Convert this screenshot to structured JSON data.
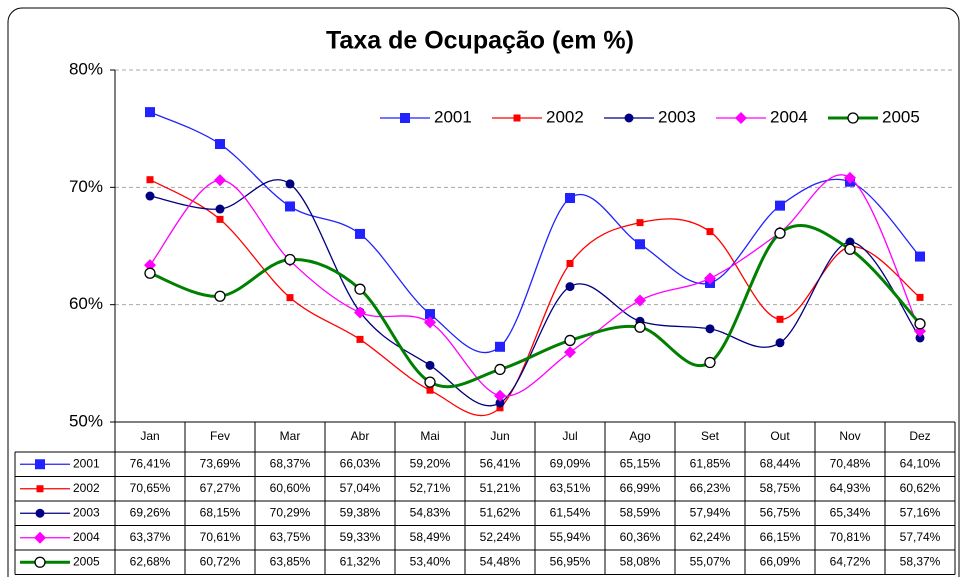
{
  "chart_data": {
    "type": "line",
    "title": "Taxa de Ocupação (em %)",
    "categories": [
      "Jan",
      "Fev",
      "Mar",
      "Abr",
      "Mai",
      "Jun",
      "Jul",
      "Ago",
      "Set",
      "Out",
      "Nov",
      "Dez"
    ],
    "ylim": [
      50,
      80
    ],
    "yticks": [
      {
        "value": 50,
        "label": "50%"
      },
      {
        "value": 60,
        "label": "60%"
      },
      {
        "value": 70,
        "label": "70%"
      },
      {
        "value": 80,
        "label": "80%"
      }
    ],
    "grid": true,
    "legend": "top",
    "series": [
      {
        "name": "2001",
        "color": "#2222ff",
        "marker": "square",
        "values": [
          76.41,
          73.69,
          68.37,
          66.03,
          59.2,
          56.41,
          69.09,
          65.15,
          61.85,
          68.44,
          70.48,
          64.1
        ],
        "value_labels": [
          "76,41%",
          "73,69%",
          "68,37%",
          "66,03%",
          "59,20%",
          "56,41%",
          "69,09%",
          "65,15%",
          "61,85%",
          "68,44%",
          "70,48%",
          "64,10%"
        ]
      },
      {
        "name": "2002",
        "color": "#ff0000",
        "marker": "small-square",
        "values": [
          70.65,
          67.27,
          60.6,
          57.04,
          52.71,
          51.21,
          63.51,
          66.99,
          66.23,
          58.75,
          64.93,
          60.62
        ],
        "value_labels": [
          "70,65%",
          "67,27%",
          "60,60%",
          "57,04%",
          "52,71%",
          "51,21%",
          "63,51%",
          "66,99%",
          "66,23%",
          "58,75%",
          "64,93%",
          "60,62%"
        ]
      },
      {
        "name": "2003",
        "color": "#000080",
        "marker": "circle",
        "values": [
          69.26,
          68.15,
          70.29,
          59.38,
          54.83,
          51.62,
          61.54,
          58.59,
          57.94,
          56.75,
          65.34,
          57.16
        ],
        "value_labels": [
          "69,26%",
          "68,15%",
          "70,29%",
          "59,38%",
          "54,83%",
          "51,62%",
          "61,54%",
          "58,59%",
          "57,94%",
          "56,75%",
          "65,34%",
          "57,16%"
        ]
      },
      {
        "name": "2004",
        "color": "#ff00ff",
        "marker": "diamond",
        "values": [
          63.37,
          70.61,
          63.75,
          59.33,
          58.49,
          52.24,
          55.94,
          60.36,
          62.24,
          66.15,
          70.81,
          57.74
        ],
        "value_labels": [
          "63,37%",
          "70,61%",
          "63,75%",
          "59,33%",
          "58,49%",
          "52,24%",
          "55,94%",
          "60,36%",
          "62,24%",
          "66,15%",
          "70,81%",
          "57,74%"
        ]
      },
      {
        "name": "2005",
        "color": "#008000",
        "marker": "open-circle",
        "values": [
          62.68,
          60.72,
          63.85,
          61.32,
          53.4,
          54.48,
          56.95,
          58.08,
          55.07,
          66.09,
          64.72,
          58.37
        ],
        "value_labels": [
          "62,68%",
          "60,72%",
          "63,85%",
          "61,32%",
          "53,40%",
          "54,48%",
          "56,95%",
          "58,08%",
          "55,07%",
          "66,09%",
          "64,72%",
          "58,37%"
        ]
      }
    ]
  }
}
